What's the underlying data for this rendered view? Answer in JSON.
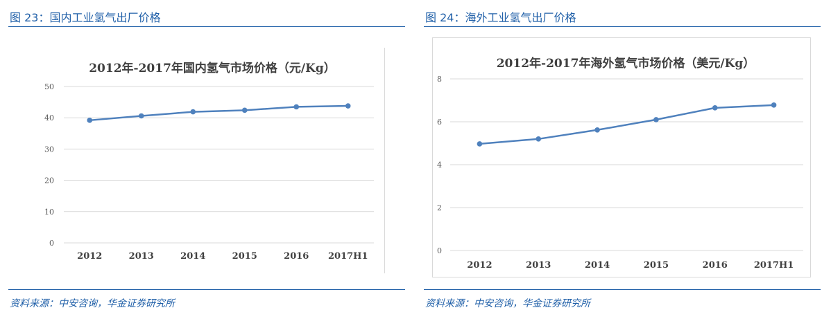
{
  "left": {
    "figure_title": "图 23：国内工业氢气出厂价格",
    "source": "资料来源：中安咨询，华金证券研究所"
  },
  "right": {
    "figure_title": "图 24：海外工业氢气出厂价格",
    "source": "资料来源：中安咨询，华金证券研究所"
  },
  "colors": {
    "line": "#4f81bd",
    "grid": "#d9d9d9",
    "caption": "#1f5fa8"
  },
  "chart_data": [
    {
      "type": "line",
      "title": "2012年-2017年国内氢气市场价格（元/Kg）",
      "categories": [
        "2012",
        "2013",
        "2014",
        "2015",
        "2016",
        "2017H1"
      ],
      "series": [
        {
          "values": [
            39.2,
            40.6,
            41.9,
            42.4,
            43.5,
            43.8
          ]
        }
      ],
      "ylim": [
        0,
        50
      ],
      "yticks": [
        "0",
        "10",
        "20",
        "30",
        "40",
        "50"
      ],
      "grid": true
    },
    {
      "type": "line",
      "title": "2012年-2017年海外氢气市场价格（美元/Kg）",
      "categories": [
        "2012",
        "2013",
        "2014",
        "2015",
        "2016",
        "2017H1"
      ],
      "series": [
        {
          "values": [
            4.97,
            5.2,
            5.62,
            6.1,
            6.65,
            6.78
          ]
        }
      ],
      "ylim": [
        0,
        8
      ],
      "yticks": [
        "0",
        "2",
        "4",
        "6",
        "8"
      ],
      "grid": true
    }
  ]
}
